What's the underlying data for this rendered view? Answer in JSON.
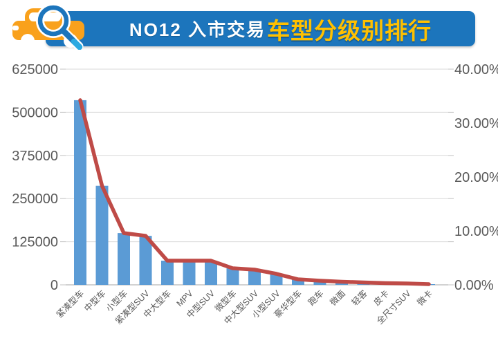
{
  "header": {
    "title_prefix": "NO12 入市交易",
    "title_highlight": "车型分级别排行",
    "banner_color": "#1C75BC",
    "highlight_color": "#FFC000",
    "icon": "car-with-magnifier"
  },
  "chart_data": {
    "type": "bar",
    "title": "NO12 入市交易车型分级别排行",
    "categories": [
      "紧凑型车",
      "中型车",
      "小型车",
      "紧凑型SUV",
      "中大型车",
      "MPV",
      "中型SUV",
      "微型车",
      "中大型SUV",
      "小型SUV",
      "豪华型车",
      "跑车",
      "微面",
      "轻客",
      "皮卡",
      "全尺寸SUV",
      "微卡"
    ],
    "series": [
      {
        "id": "volume",
        "type": "bar",
        "axis": "left",
        "color": "#5B9BD5",
        "values": [
          535000,
          287000,
          150000,
          142000,
          70000,
          70000,
          70000,
          48000,
          44000,
          32000,
          16000,
          12000,
          9000,
          7000,
          5000,
          4000,
          2000
        ]
      },
      {
        "id": "share",
        "type": "line",
        "axis": "right",
        "color": "#BF4B47",
        "values": [
          34.24,
          18.37,
          9.6,
          9.09,
          4.48,
          4.48,
          4.48,
          3.07,
          2.82,
          2.05,
          1.02,
          0.77,
          0.58,
          0.45,
          0.32,
          0.26,
          0.13
        ]
      }
    ],
    "left_axis": {
      "min": 0,
      "max": 625000,
      "tick_values": [
        0,
        125000,
        250000,
        375000,
        500000,
        625000
      ],
      "tick_labels": [
        "0",
        "125000",
        "250000",
        "375000",
        "500000",
        "625000"
      ]
    },
    "right_axis": {
      "min": 0,
      "max": 40,
      "tick_values": [
        0,
        10,
        20,
        30,
        40
      ],
      "tick_labels": [
        "0.00%",
        "10.00%",
        "20.00%",
        "30.00%",
        "40.00%"
      ]
    },
    "grid": true,
    "legend": false,
    "colors": {
      "grid": "#D9D9D9",
      "axis_line": "#C3C3C3",
      "label": "#595959"
    }
  }
}
